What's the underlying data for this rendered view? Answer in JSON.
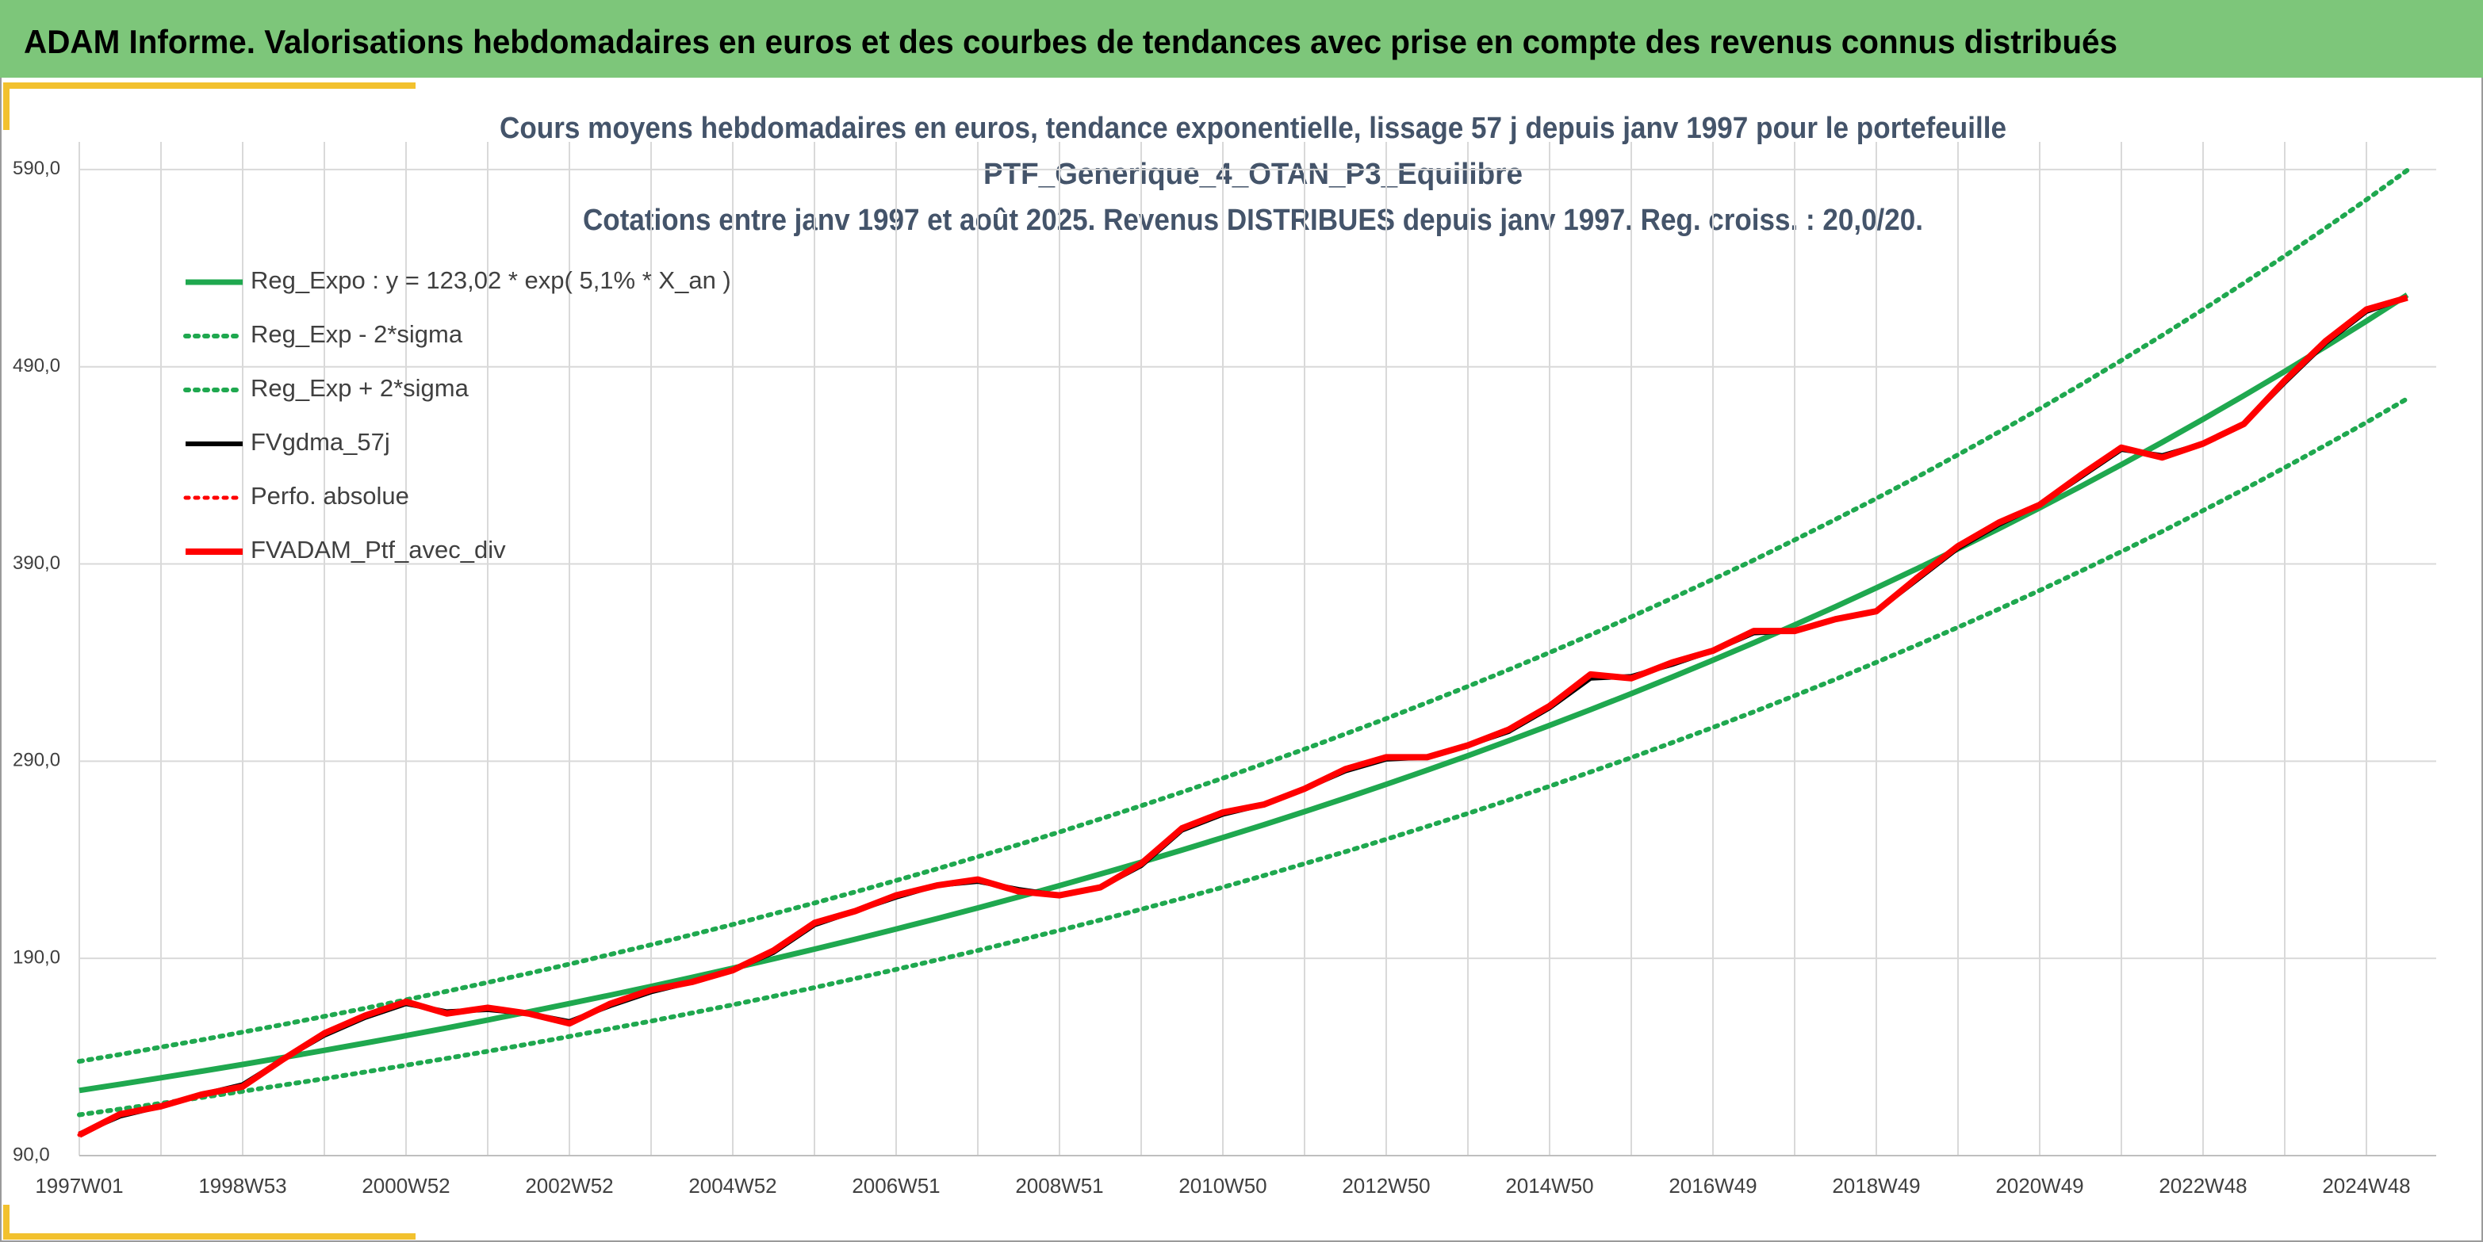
{
  "header": {
    "title": "ADAM Informe. Valorisations hebdomadaires en euros et des courbes de tendances avec prise en compte des revenus connus distribués"
  },
  "chart_data": {
    "type": "line",
    "title_lines": [
      "Cours moyens hebdomadaires en euros, tendance exponentielle, lissage 57 j depuis janv 1997 pour le portefeuille",
      "PTF_Generique_4_OTAN_P3_Equilibre",
      "Cotations entre janv 1997 et août 2025. Revenus DISTRIBUES depuis janv 1997. Reg. croiss. : 20,0/20."
    ],
    "categories": [
      "1997W01",
      null,
      null,
      null,
      "1998W53",
      null,
      null,
      null,
      "2000W52",
      null,
      null,
      null,
      "2002W52",
      null,
      null,
      null,
      "2004W52",
      null,
      null,
      null,
      "2006W51",
      null,
      null,
      null,
      "2008W51",
      null,
      null,
      null,
      "2010W50",
      null,
      null,
      null,
      "2012W50",
      null,
      null,
      null,
      "2014W50",
      null,
      null,
      null,
      "2016W49",
      null,
      null,
      null,
      "2018W49",
      null,
      null,
      null,
      "2020W49",
      null,
      null,
      null,
      "2022W48",
      null,
      null,
      null,
      "2024W48",
      null
    ],
    "ylim": [
      90,
      600
    ],
    "yticks": [
      {
        "value": 90,
        "label": "90,0"
      },
      {
        "value": 190,
        "label": "190,0"
      },
      {
        "value": 290,
        "label": "290,0"
      },
      {
        "value": 390,
        "label": "390,0"
      },
      {
        "value": 490,
        "label": "490,0"
      },
      {
        "value": 590,
        "label": "590,0"
      }
    ],
    "grid": true,
    "legend": "upper left",
    "series": [
      {
        "name": "Reg_Expo : y = 123,02 * exp( 5,1% *  X_an )",
        "color": "#1fa84f",
        "style": "solid",
        "width": 7,
        "values": [
          123.02,
          126.2,
          129.46,
          132.8,
          136.23,
          139.75,
          143.36,
          147.06,
          150.86,
          154.76,
          158.76,
          162.86,
          167.07,
          171.39,
          175.82,
          180.36,
          185.02,
          189.8,
          194.7,
          199.73,
          204.89,
          210.18,
          215.61,
          221.18,
          226.89,
          232.75,
          238.76,
          244.93,
          251.26,
          257.75,
          264.41,
          271.24,
          278.25,
          285.44,
          292.81,
          300.37,
          308.13,
          316.09,
          324.26,
          332.64,
          341.23,
          350.04,
          359.08,
          368.36,
          377.87,
          387.63,
          397.64,
          407.91,
          418.45,
          429.26,
          440.35,
          451.72,
          463.39,
          475.36,
          487.64,
          500.24,
          513.16,
          526.41
        ]
      },
      {
        "name": "Reg_Exp - 2*sigma",
        "color": "#1fa84f",
        "style": "dotted",
        "width": 6,
        "values": [
          110.7,
          113.6,
          116.5,
          119.5,
          122.6,
          125.8,
          129.0,
          132.4,
          135.8,
          139.3,
          142.9,
          146.6,
          150.4,
          154.3,
          158.2,
          162.3,
          166.5,
          170.8,
          175.2,
          179.8,
          184.4,
          189.2,
          194.0,
          199.1,
          204.2,
          209.5,
          214.9,
          220.4,
          226.1,
          232.0,
          238.0,
          244.1,
          250.4,
          256.9,
          263.5,
          270.3,
          277.3,
          284.5,
          291.8,
          299.4,
          307.1,
          315.0,
          323.2,
          331.5,
          340.1,
          348.9,
          357.9,
          367.1,
          376.6,
          386.3,
          396.3,
          406.5,
          417.1,
          427.8,
          438.9,
          450.2,
          461.8,
          473.8
        ]
      },
      {
        "name": "Reg_Exp + 2*sigma",
        "color": "#1fa84f",
        "style": "dotted",
        "width": 6,
        "values": [
          137.8,
          141.3,
          145.0,
          148.7,
          152.6,
          156.5,
          160.6,
          164.7,
          169.0,
          173.3,
          177.8,
          182.4,
          187.1,
          192.0,
          196.9,
          202.0,
          207.2,
          212.6,
          218.1,
          223.7,
          229.5,
          235.4,
          241.5,
          247.7,
          254.1,
          260.7,
          267.4,
          274.3,
          281.4,
          288.7,
          296.1,
          303.8,
          311.6,
          319.7,
          327.9,
          336.4,
          345.1,
          354.0,
          363.2,
          372.6,
          382.2,
          392.0,
          402.2,
          412.6,
          423.2,
          434.1,
          445.4,
          456.9,
          468.7,
          480.8,
          493.2,
          505.9,
          519.0,
          532.4,
          546.2,
          560.3,
          574.7,
          589.6
        ]
      },
      {
        "name": "FVgdma_57j",
        "color": "#000000",
        "style": "solid",
        "width": 6,
        "values": [
          101,
          110,
          115,
          121,
          126,
          139,
          151,
          160,
          167,
          163,
          164,
          162,
          158,
          166,
          173,
          178,
          184,
          193,
          207,
          214,
          221,
          227,
          229,
          225,
          222,
          226,
          237,
          255,
          263,
          268,
          276,
          285,
          291,
          292,
          298,
          305,
          317,
          332,
          333,
          339,
          346,
          355,
          356,
          362,
          366,
          382,
          398,
          410,
          420,
          434,
          448,
          445,
          451,
          461,
          482,
          502,
          518,
          525
        ]
      },
      {
        "name": "Perfo. absolue",
        "color": "#ff0000",
        "style": "dotted",
        "width": 5,
        "values": [
          100.5,
          111,
          115,
          121,
          125,
          139,
          152,
          161,
          168,
          162,
          165,
          162,
          157,
          167,
          174,
          178,
          184,
          194,
          208,
          214,
          222,
          227,
          230,
          224,
          222,
          226,
          238,
          256,
          264,
          268,
          276,
          286,
          292,
          292,
          298,
          306,
          318,
          334,
          332,
          340,
          346,
          356,
          356,
          362,
          366,
          383,
          399,
          411,
          420,
          435,
          449,
          444,
          451,
          461,
          483,
          503,
          519,
          525
        ]
      },
      {
        "name": "FVADAM_Ptf_avec_div",
        "color": "#ff0000",
        "style": "solid",
        "width": 8,
        "values": [
          100.5,
          111,
          115,
          121,
          125,
          139,
          152,
          161,
          168,
          162,
          165,
          162,
          157,
          167,
          174,
          178,
          184,
          194,
          208,
          214,
          222,
          227,
          230,
          224,
          222,
          226,
          238,
          256,
          264,
          268,
          276,
          286,
          292,
          292,
          298,
          306,
          318,
          334,
          332,
          340,
          346,
          356,
          356,
          362,
          366,
          383,
          399,
          411,
          420,
          435,
          449,
          444,
          451,
          461,
          483,
          503,
          519,
          525
        ]
      }
    ]
  }
}
